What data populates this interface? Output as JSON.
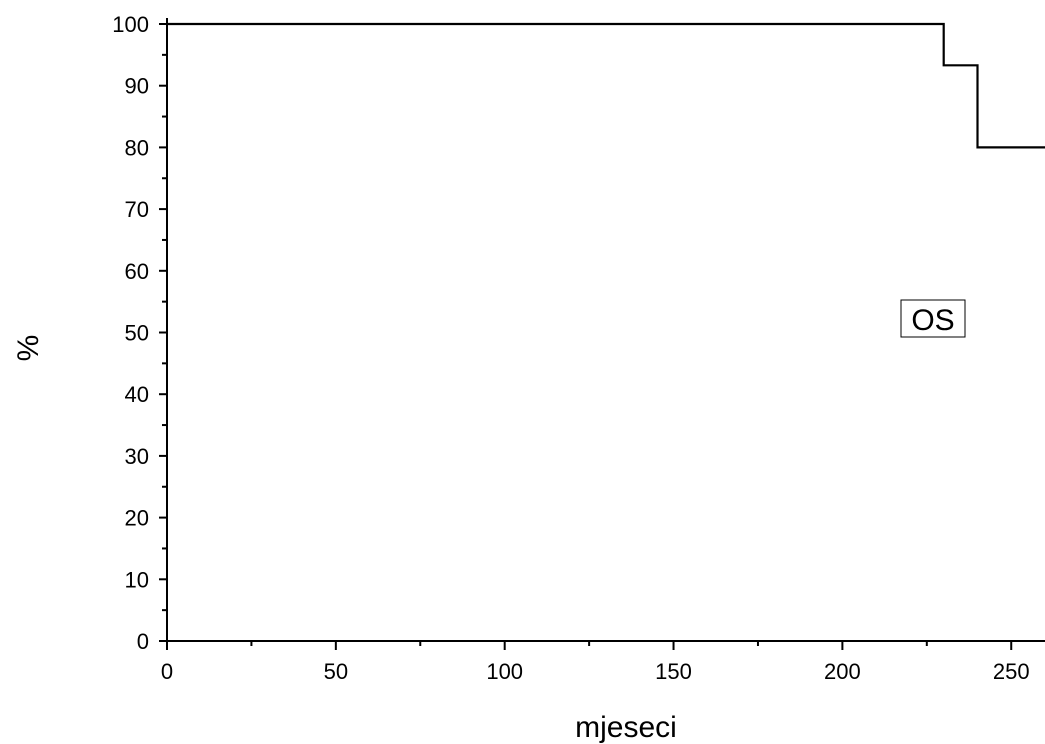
{
  "chart_data": {
    "type": "line",
    "step": true,
    "title": "",
    "xlabel": "mjeseci",
    "ylabel": "%",
    "xlim": [
      0,
      260
    ],
    "ylim": [
      0,
      100
    ],
    "xticks": [
      0,
      50,
      100,
      150,
      200,
      250
    ],
    "yticks": [
      0,
      10,
      20,
      30,
      40,
      50,
      60,
      70,
      80,
      90,
      100
    ],
    "grid": false,
    "legend_position": "right",
    "series": [
      {
        "name": "OS",
        "color": "#000000",
        "x": [
          0,
          230,
          230,
          240,
          240,
          260
        ],
        "y": [
          100,
          100,
          93.3,
          93.3,
          80,
          80
        ]
      }
    ]
  }
}
